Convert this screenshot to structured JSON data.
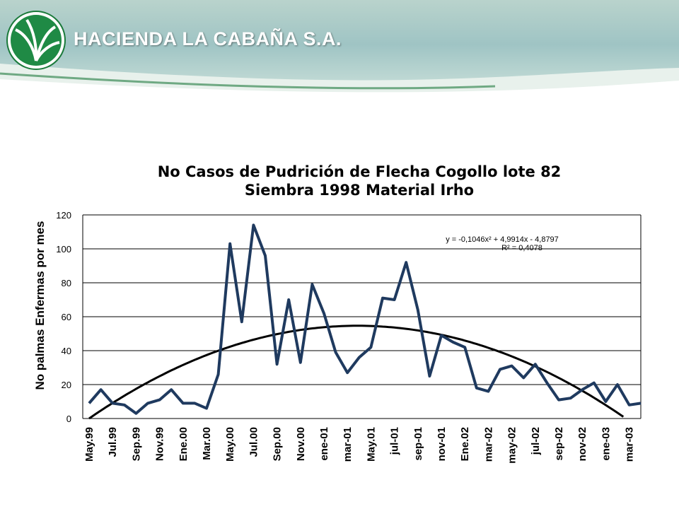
{
  "header": {
    "company_name": "HACIENDA LA CABAÑA S.A."
  },
  "colors": {
    "series": "#1f3a5f",
    "trend": "#000000",
    "grid": "#000000"
  },
  "chart_data": {
    "type": "line",
    "title_line1": "No Casos de Pudrición de Flecha Cogollo lote 82",
    "title_line2": "Siembra 1998 Material Irho",
    "xlabel": "",
    "ylabel": "No palmas Enfermas por mes",
    "ylim": [
      0,
      120
    ],
    "yticks": [
      0,
      20,
      40,
      60,
      80,
      100,
      120
    ],
    "grid": true,
    "legend": "none",
    "x_tick_labels": [
      "May.99",
      "Jul.99",
      "Sep.99",
      "Nov.99",
      "Ene.00",
      "Mar.00",
      "May.00",
      "Jul.00",
      "Sep.00",
      "Nov.00",
      "ene-01",
      "mar-01",
      "May.01",
      "jul-01",
      "sep-01",
      "nov-01",
      "Ene.02",
      "mar-02",
      "may-02",
      "jul-02",
      "sep-02",
      "nov-02",
      "ene-03",
      "mar-03"
    ],
    "values": [
      9,
      17,
      9,
      8,
      3,
      9,
      11,
      17,
      9,
      9,
      6,
      26,
      103,
      57,
      114,
      96,
      32,
      70,
      33,
      79,
      62,
      39,
      27,
      36,
      42,
      71,
      70,
      92,
      64,
      25,
      49,
      45,
      42,
      18,
      16,
      29,
      31,
      24,
      32,
      21,
      11,
      12,
      17,
      21,
      10,
      20,
      8,
      9
    ],
    "trendline": {
      "equation": "y = -0,1046x² + 4,9914x - 4,8797",
      "r_squared": "R² = 0,4078",
      "a": -0.1046,
      "b": 4.9914,
      "c": -4.8797
    }
  }
}
